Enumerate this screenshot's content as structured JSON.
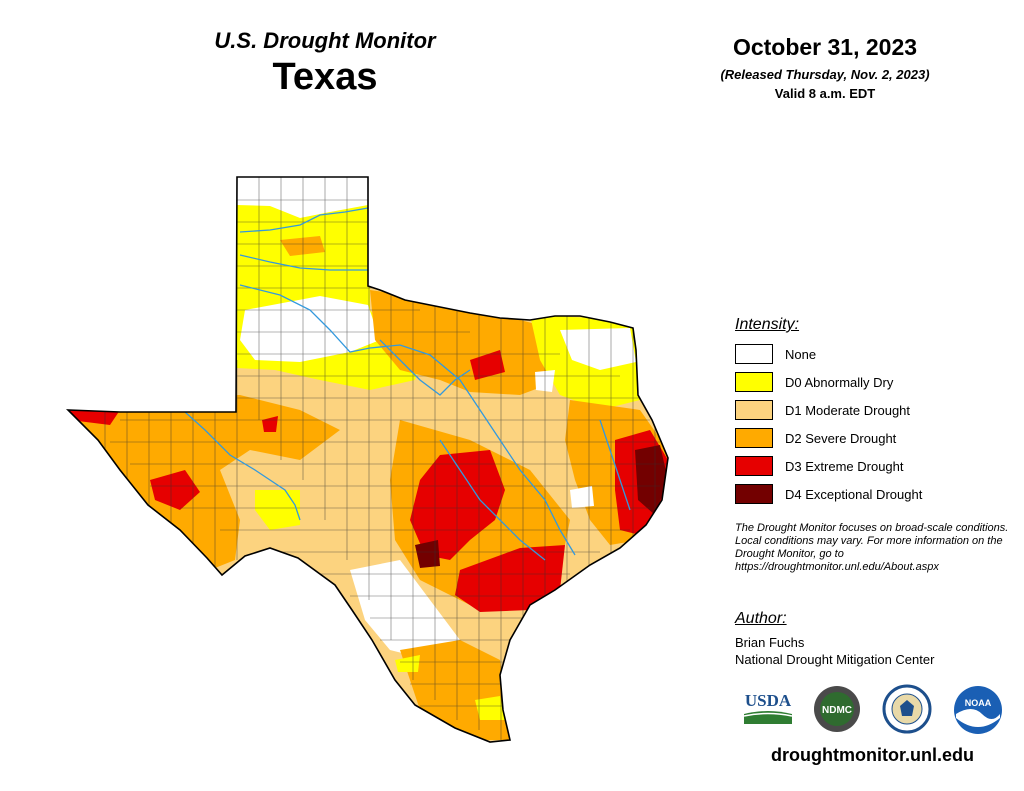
{
  "header": {
    "monitor_title": "U.S. Drought Monitor",
    "state": "Texas",
    "date": "October 31, 2023",
    "released": "(Released Thursday, Nov. 2, 2023)",
    "valid": "Valid 8 a.m. EDT"
  },
  "legend": {
    "heading": "Intensity:",
    "items": [
      {
        "label": "None",
        "color": "#ffffff"
      },
      {
        "label": "D0 Abnormally Dry",
        "color": "#ffff00"
      },
      {
        "label": "D1 Moderate Drought",
        "color": "#fcd37f"
      },
      {
        "label": "D2 Severe Drought",
        "color": "#ffaa00"
      },
      {
        "label": "D3 Extreme Drought",
        "color": "#e60000"
      },
      {
        "label": "D4 Exceptional Drought",
        "color": "#730000"
      }
    ]
  },
  "note": "The Drought Monitor focuses on broad-scale conditions. Local conditions may vary. For more information on the Drought Monitor, go to https://droughtmonitor.unl.edu/About.aspx",
  "author": {
    "heading": "Author:",
    "name": "Brian Fuchs",
    "org": "National Drought Mitigation Center"
  },
  "logos": {
    "usda": "USDA",
    "ndmc": "NDMC",
    "noaa": "NOAA"
  },
  "website": "droughtmonitor.unl.edu",
  "map_colors": {
    "river": "#3399dd",
    "county_line": "#333333",
    "outline": "#000000"
  }
}
